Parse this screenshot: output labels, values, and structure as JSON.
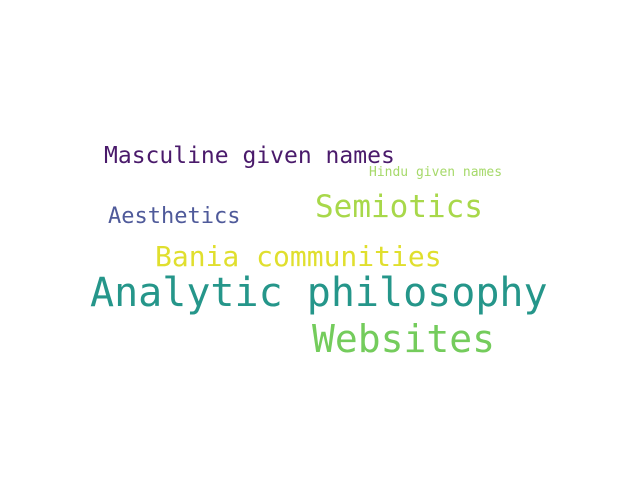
{
  "words": [
    {
      "text": "Masculine given names",
      "color": "#4a1a6b"
    },
    {
      "text": "Hindu given names",
      "color": "#a6d96a"
    },
    {
      "text": "Semiotics",
      "color": "#a8d84a"
    },
    {
      "text": "Aesthetics",
      "color": "#4f5a9a"
    },
    {
      "text": "Bania communities",
      "color": "#e0df2e"
    },
    {
      "text": "Analytic philosophy",
      "color": "#25968a"
    },
    {
      "text": "Websites",
      "color": "#74cc5c"
    }
  ]
}
